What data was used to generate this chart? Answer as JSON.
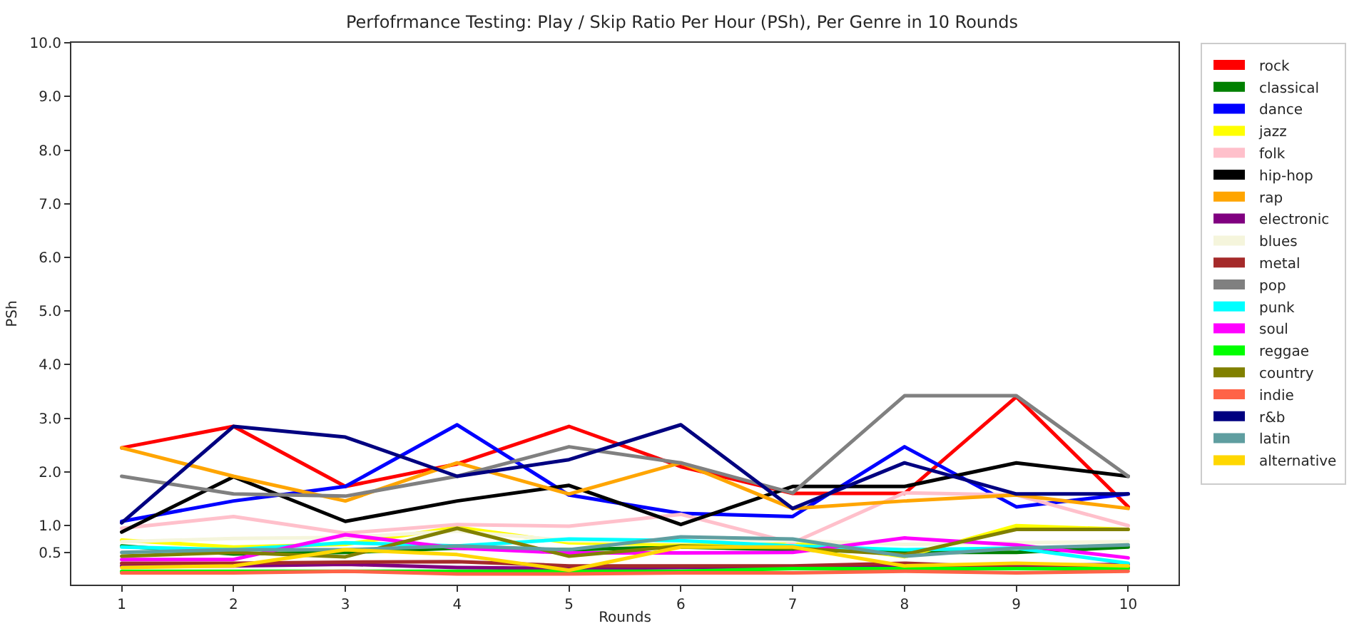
{
  "chart_data": {
    "type": "line",
    "title": "Perfofrmance Testing: Play / Skip Ratio Per Hour (PSh), Per Genre in 10 Rounds",
    "xlabel": "Rounds",
    "ylabel": "PSh",
    "x": [
      1,
      2,
      3,
      4,
      5,
      6,
      7,
      8,
      9,
      10
    ],
    "xlim": [
      0.55,
      10.45
    ],
    "xticks": [
      1,
      2,
      3,
      4,
      5,
      6,
      7,
      8,
      9,
      10
    ],
    "ylim": [
      -0.1,
      10
    ],
    "yticks": [
      0.5,
      {
        "value": 1,
        "label": "1.0"
      },
      {
        "value": 2,
        "label": "2.0"
      },
      {
        "value": 3,
        "label": "3.0"
      },
      {
        "value": 4,
        "label": "4.0"
      },
      {
        "value": 5,
        "label": "5.0"
      },
      {
        "value": 6,
        "label": "6.0"
      },
      {
        "value": 7,
        "label": "7.0"
      },
      {
        "value": 8,
        "label": "8.0"
      },
      {
        "value": 9,
        "label": "9.0"
      },
      {
        "value": 10,
        "label": "10.0"
      }
    ],
    "legend": "top right",
    "series": [
      {
        "name": "rock",
        "color": "#ff0000",
        "values": [
          2.45,
          2.85,
          1.73,
          2.15,
          2.85,
          2.1,
          1.6,
          1.6,
          3.4,
          1.35
        ]
      },
      {
        "name": "classical",
        "color": "#008000",
        "values": [
          0.62,
          0.47,
          0.5,
          0.58,
          0.55,
          0.6,
          0.55,
          0.5,
          0.5,
          0.6
        ]
      },
      {
        "name": "dance",
        "color": "#0000ff",
        "values": [
          1.08,
          1.46,
          1.73,
          2.88,
          1.57,
          1.23,
          1.17,
          2.47,
          1.35,
          1.59
        ]
      },
      {
        "name": "jazz",
        "color": "#ffff00",
        "values": [
          0.73,
          0.6,
          0.65,
          0.97,
          0.68,
          0.64,
          0.7,
          0.42,
          1.0,
          0.93
        ]
      },
      {
        "name": "folk",
        "color": "#ffc0cb",
        "values": [
          0.95,
          1.17,
          0.86,
          1.02,
          0.99,
          1.21,
          0.68,
          1.61,
          1.57,
          1.0
        ]
      },
      {
        "name": "hip-hop",
        "color": "#000000",
        "values": [
          0.88,
          1.91,
          1.08,
          1.46,
          1.75,
          1.02,
          1.73,
          1.73,
          2.17,
          1.92
        ]
      },
      {
        "name": "rap",
        "color": "#ffa500",
        "values": [
          2.45,
          1.92,
          1.46,
          2.17,
          1.59,
          2.17,
          1.32,
          1.46,
          1.57,
          1.32
        ]
      },
      {
        "name": "electronic",
        "color": "#800080",
        "values": [
          0.25,
          0.25,
          0.28,
          0.22,
          0.2,
          0.22,
          0.22,
          0.25,
          0.25,
          0.28
        ]
      },
      {
        "name": "blues",
        "color": "#f5f5dc",
        "values": [
          0.7,
          0.76,
          0.78,
          0.9,
          0.72,
          0.7,
          0.72,
          0.65,
          0.68,
          0.7
        ]
      },
      {
        "name": "metal",
        "color": "#a52a2a",
        "values": [
          0.3,
          0.3,
          0.32,
          0.33,
          0.25,
          0.25,
          0.25,
          0.3,
          0.22,
          0.22
        ]
      },
      {
        "name": "pop",
        "color": "#808080",
        "values": [
          1.92,
          1.59,
          1.55,
          1.92,
          2.47,
          2.17,
          1.61,
          3.42,
          3.42,
          1.92
        ]
      },
      {
        "name": "punk",
        "color": "#00ffff",
        "values": [
          0.6,
          0.55,
          0.68,
          0.62,
          0.75,
          0.72,
          0.62,
          0.55,
          0.58,
          0.3
        ]
      },
      {
        "name": "soul",
        "color": "#ff00ff",
        "values": [
          0.37,
          0.37,
          0.83,
          0.58,
          0.49,
          0.49,
          0.5,
          0.77,
          0.64,
          0.4
        ]
      },
      {
        "name": "reggae",
        "color": "#00ff00",
        "values": [
          0.15,
          0.15,
          0.15,
          0.15,
          0.15,
          0.15,
          0.2,
          0.2,
          0.2,
          0.2
        ]
      },
      {
        "name": "country",
        "color": "#808000",
        "values": [
          0.43,
          0.5,
          0.42,
          0.95,
          0.43,
          0.62,
          0.58,
          0.46,
          0.93,
          0.93
        ]
      },
      {
        "name": "indie",
        "color": "#ff6347",
        "values": [
          0.12,
          0.12,
          0.15,
          0.1,
          0.1,
          0.12,
          0.12,
          0.15,
          0.12,
          0.15
        ]
      },
      {
        "name": "r&b",
        "color": "#000080",
        "values": [
          1.05,
          2.85,
          2.65,
          1.92,
          2.23,
          2.88,
          1.32,
          2.17,
          1.59,
          1.59
        ]
      },
      {
        "name": "latin",
        "color": "#5f9ea0",
        "values": [
          0.5,
          0.55,
          0.55,
          0.62,
          0.55,
          0.79,
          0.75,
          0.43,
          0.58,
          0.64
        ]
      },
      {
        "name": "alternative",
        "color": "#ffd700",
        "values": [
          0.22,
          0.25,
          0.55,
          0.46,
          0.17,
          0.6,
          0.6,
          0.25,
          0.3,
          0.25
        ]
      }
    ]
  }
}
